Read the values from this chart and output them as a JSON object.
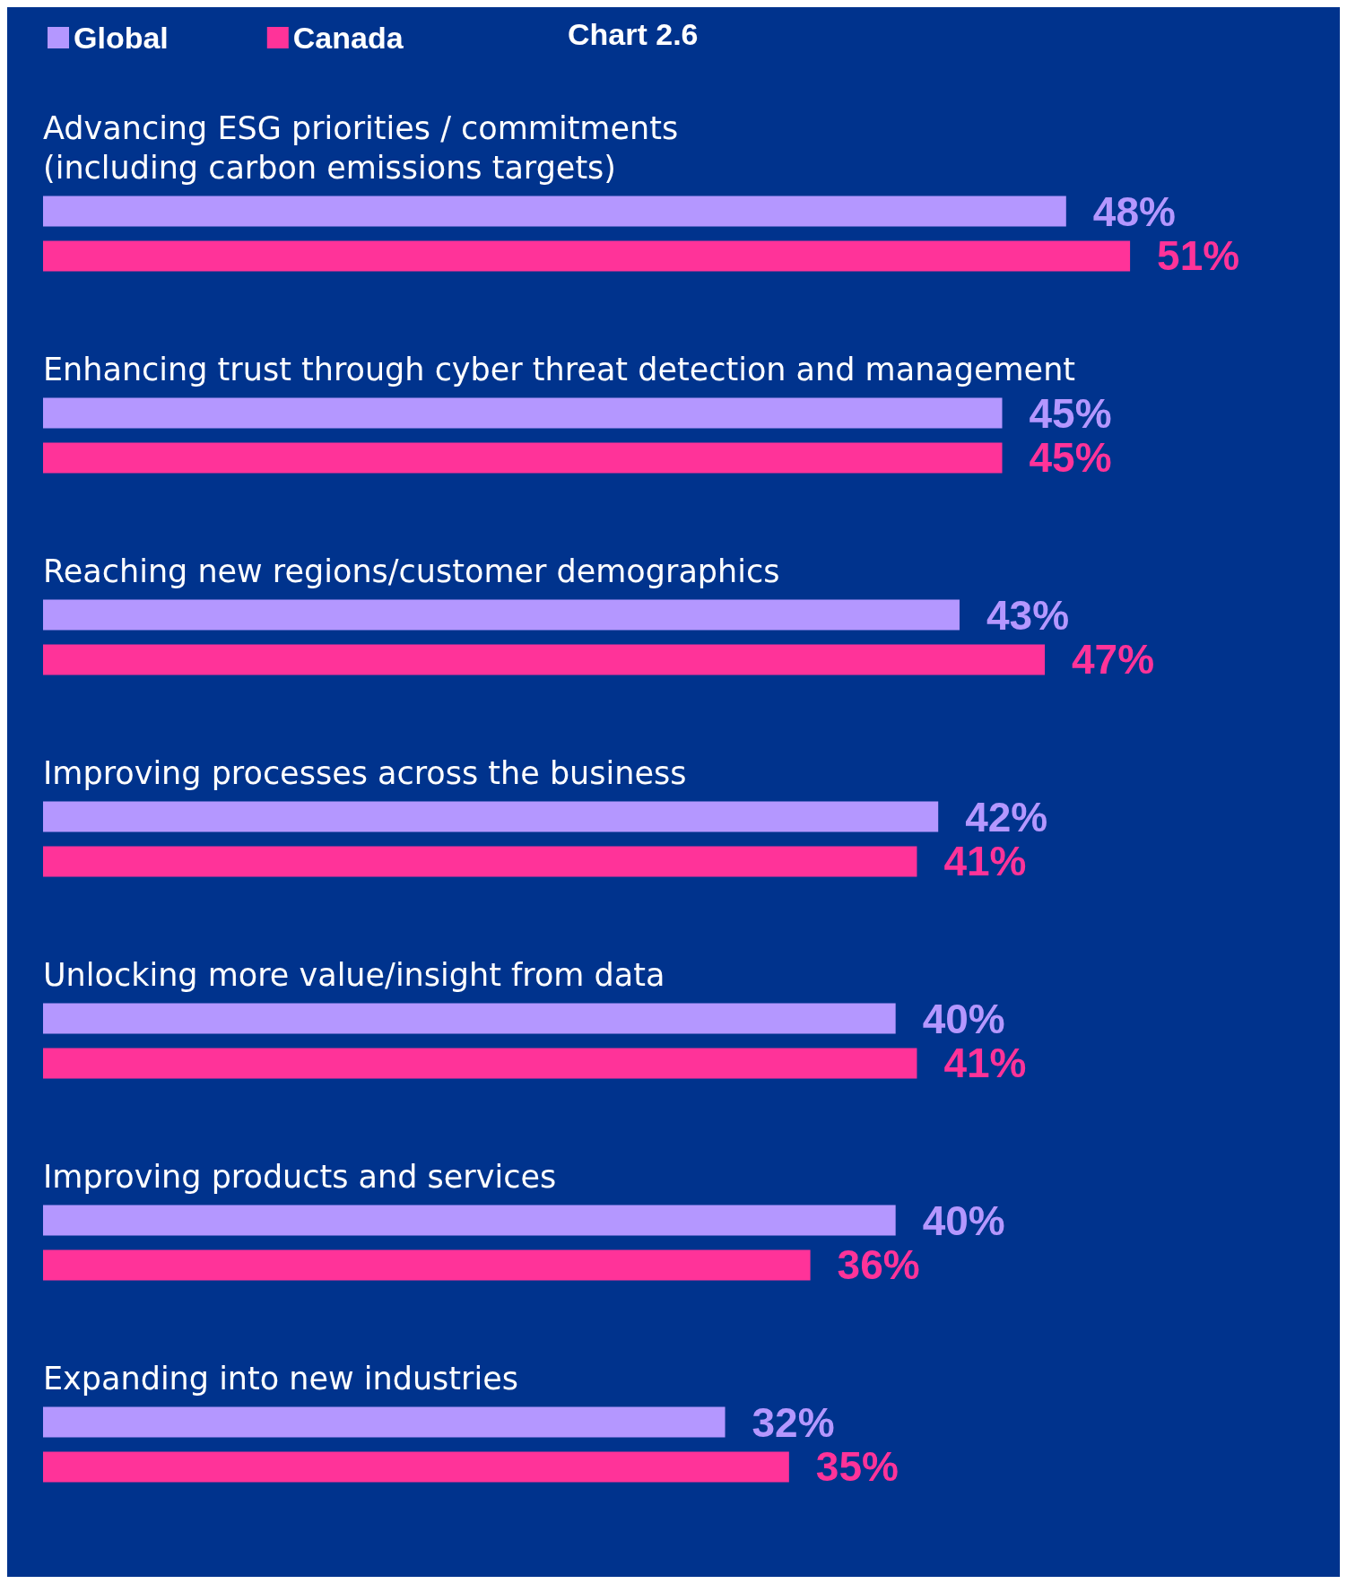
{
  "chart_data": {
    "type": "bar",
    "orientation": "horizontal",
    "title": "Chart 2.6",
    "categories": [
      "Advancing ESG priorities / commitments\n(including carbon emissions targets)",
      "Enhancing trust through cyber threat detection and management",
      "Reaching new regions/customer demographics",
      "Improving processes across the business",
      "Unlocking more value/insight from data",
      "Improving products and services",
      "Expanding into new industries"
    ],
    "series": [
      {
        "name": "Global",
        "color": "#b497ff",
        "values": [
          48,
          45,
          43,
          42,
          40,
          40,
          32
        ],
        "value_labels": [
          "48%",
          "45%",
          "43%",
          "42%",
          "40%",
          "40%",
          "32%"
        ]
      },
      {
        "name": "Canada",
        "color": "#ff3399",
        "values": [
          51,
          45,
          47,
          41,
          41,
          36,
          35
        ],
        "value_labels": [
          "51%",
          "45%",
          "47%",
          "41%",
          "41%",
          "36%",
          "35%"
        ]
      }
    ],
    "legend": "top left",
    "grid": false
  }
}
